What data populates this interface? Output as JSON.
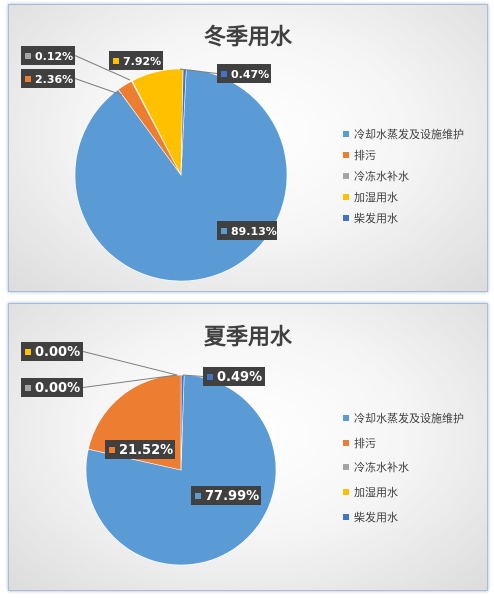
{
  "chart_data": [
    {
      "type": "pie",
      "title": "冬季用水",
      "categories": [
        "冷却水蒸发及设施维护",
        "排污",
        "冷冻水补水",
        "加湿用水",
        "柴发用水"
      ],
      "values": [
        89.13,
        2.36,
        0.12,
        7.92,
        0.47
      ],
      "data_labels": [
        "89.13%",
        "2.36%",
        "0.12%",
        "7.92%",
        "0.47%"
      ],
      "colors": [
        "#5b9bd5",
        "#ed7d31",
        "#a5a5a5",
        "#ffc000",
        "#4472c4"
      ],
      "legend_position": "right"
    },
    {
      "type": "pie",
      "title": "夏季用水",
      "categories": [
        "冷却水蒸发及设施维护",
        "排污",
        "冷冻水补水",
        "加湿用水",
        "柴发用水"
      ],
      "values": [
        77.99,
        21.52,
        0.0,
        0.0,
        0.49
      ],
      "data_labels": [
        "77.99%",
        "21.52%",
        "0.00%",
        "0.00%",
        "0.49%"
      ],
      "colors": [
        "#5b9bd5",
        "#ed7d31",
        "#a5a5a5",
        "#ffc000",
        "#4472c4"
      ],
      "legend_position": "right"
    }
  ]
}
